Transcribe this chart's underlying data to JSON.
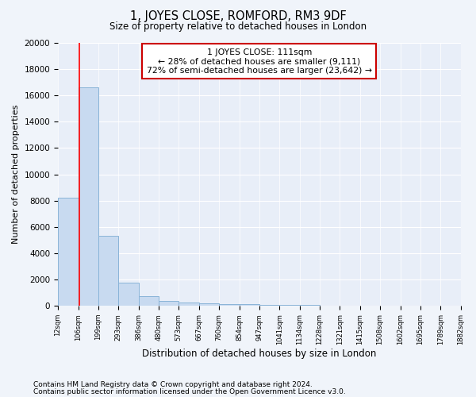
{
  "title": "1, JOYES CLOSE, ROMFORD, RM3 9DF",
  "subtitle": "Size of property relative to detached houses in London",
  "xlabel": "Distribution of detached houses by size in London",
  "ylabel": "Number of detached properties",
  "property_label": "1 JOYES CLOSE: 111sqm",
  "pct_smaller": 28,
  "n_smaller": 9111,
  "pct_larger_semi": 72,
  "n_larger_semi": 23642,
  "bin_edges": [
    12,
    106,
    199,
    293,
    386,
    480,
    573,
    667,
    760,
    854,
    947,
    1041,
    1134,
    1228,
    1321,
    1415,
    1508,
    1602,
    1695,
    1789,
    1882
  ],
  "bin_counts": [
    8200,
    16600,
    5300,
    1750,
    750,
    370,
    260,
    185,
    130,
    100,
    80,
    55,
    40,
    28,
    18,
    12,
    8,
    6,
    4,
    3
  ],
  "bar_color": "#c8daf0",
  "bar_edge_color": "#8ab4d8",
  "red_line_x": 111,
  "ylim": [
    0,
    20000
  ],
  "yticks": [
    0,
    2000,
    4000,
    6000,
    8000,
    10000,
    12000,
    14000,
    16000,
    18000,
    20000
  ],
  "tick_labels": [
    "12sqm",
    "106sqm",
    "199sqm",
    "293sqm",
    "386sqm",
    "480sqm",
    "573sqm",
    "667sqm",
    "760sqm",
    "854sqm",
    "947sqm",
    "1041sqm",
    "1134sqm",
    "1228sqm",
    "1321sqm",
    "1415sqm",
    "1508sqm",
    "1602sqm",
    "1695sqm",
    "1789sqm",
    "1882sqm"
  ],
  "footnote1": "Contains HM Land Registry data © Crown copyright and database right 2024.",
  "footnote2": "Contains public sector information licensed under the Open Government Licence v3.0.",
  "bg_color": "#f0f4fa",
  "ax_bg_color": "#e8eef8",
  "grid_color": "#ffffff",
  "annotation_box_color": "#ffffff",
  "annotation_box_edge": "#cc0000"
}
